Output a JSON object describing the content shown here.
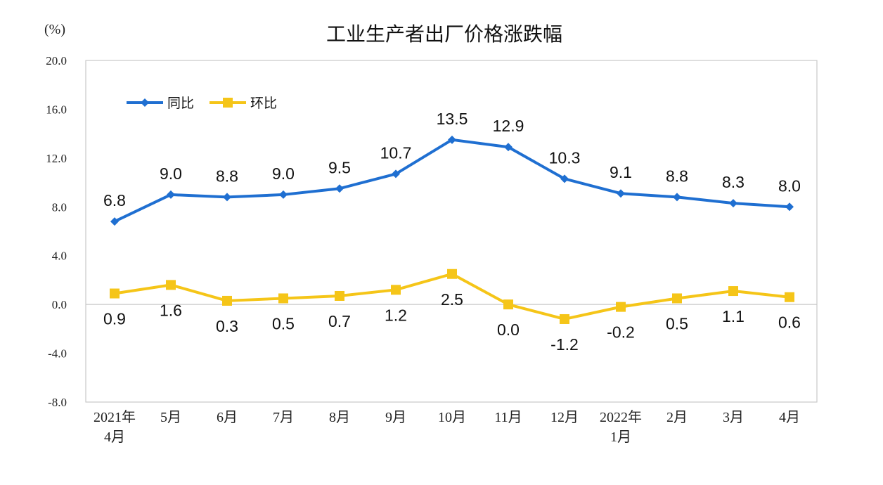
{
  "chart_data": {
    "type": "line",
    "title": "工业生产者出厂价格涨跌幅",
    "unit_label": "(%)",
    "categories": [
      [
        "2021年",
        "4月"
      ],
      [
        "5月"
      ],
      [
        "6月"
      ],
      [
        "7月"
      ],
      [
        "8月"
      ],
      [
        "9月"
      ],
      [
        "10月"
      ],
      [
        "11月"
      ],
      [
        "12月"
      ],
      [
        "2022年",
        "1月"
      ],
      [
        "2月"
      ],
      [
        "3月"
      ],
      [
        "4月"
      ]
    ],
    "ylim": [
      -8.0,
      20.0
    ],
    "yticks": [
      "20.0",
      "16.0",
      "12.0",
      "8.0",
      "4.0",
      "0.0",
      "-4.0",
      "-8.0"
    ],
    "grid": false,
    "legend_position": "top-left",
    "series": [
      {
        "name": "同比",
        "color": "#1f6fd1",
        "marker": "diamond",
        "labels_position": "above",
        "values": [
          6.8,
          9.0,
          8.8,
          9.0,
          9.5,
          10.7,
          13.5,
          12.9,
          10.3,
          9.1,
          8.8,
          8.3,
          8.0
        ],
        "labels": [
          "6.8",
          "9.0",
          "8.8",
          "9.0",
          "9.5",
          "10.7",
          "13.5",
          "12.9",
          "10.3",
          "9.1",
          "8.8",
          "8.3",
          "8.0"
        ]
      },
      {
        "name": "环比",
        "color": "#f5c518",
        "marker": "square",
        "labels_position": "below",
        "values": [
          0.9,
          1.6,
          0.3,
          0.5,
          0.7,
          1.2,
          2.5,
          0.0,
          -1.2,
          -0.2,
          0.5,
          1.1,
          0.6
        ],
        "labels": [
          "0.9",
          "1.6",
          "0.3",
          "0.5",
          "0.7",
          "1.2",
          "2.5",
          "0.0",
          "-1.2",
          "-0.2",
          "0.5",
          "1.1",
          "0.6"
        ]
      }
    ]
  }
}
